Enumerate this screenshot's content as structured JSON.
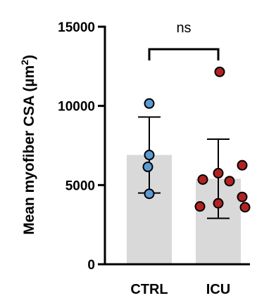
{
  "chart_data": {
    "type": "bar",
    "ylabel_main": "Mean myofiber CSA (µm",
    "ylabel_sup": "2",
    "ylabel_close": ")",
    "ylim": [
      0,
      15000
    ],
    "yticks": [
      "0",
      "5000",
      "10000",
      "15000"
    ],
    "yticks_values": [
      0,
      5000,
      10000,
      15000
    ],
    "categories": [
      "CTRL",
      "ICU"
    ],
    "means": [
      6900,
      5400
    ],
    "sd_upper": [
      9300,
      7900
    ],
    "sd_lower": [
      4500,
      2900
    ],
    "points": [
      [
        10150,
        6900,
        6150,
        4450
      ],
      [
        12150,
        6250,
        5750,
        5350,
        5250,
        4250,
        3850,
        3650,
        3600
      ]
    ],
    "point_colors": [
      "#5b9bd5",
      "#b22222"
    ],
    "bar_color": "#d9d9d9",
    "significance": "ns"
  }
}
